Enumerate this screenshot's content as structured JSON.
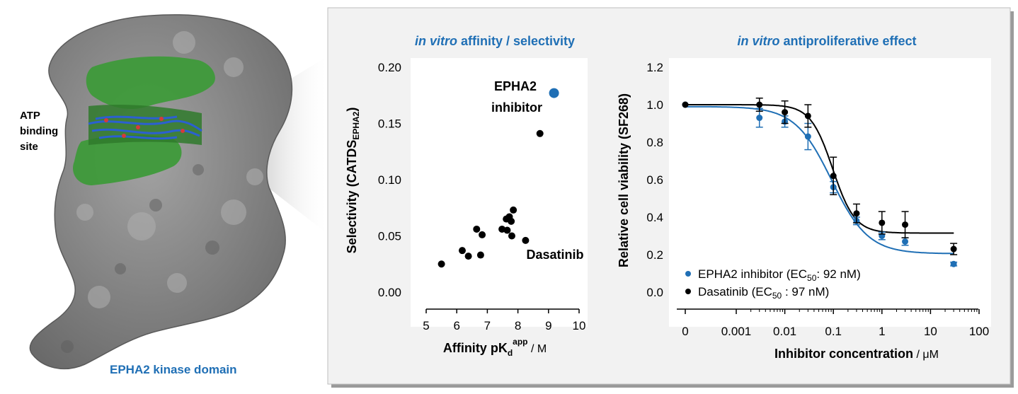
{
  "colors": {
    "panel_bg": "#f2f2f2",
    "accent_blue": "#1f6fb5",
    "black": "#000000",
    "protein_gray": "#8c8c8c",
    "binding_green": "#3e9a3a"
  },
  "protein": {
    "label": "EPHA2 kinase domain",
    "atp_label": [
      "ATP",
      "binding",
      "site"
    ]
  },
  "chart_data": [
    {
      "type": "scatter",
      "title_italic": "in vitro",
      "title_rest": "affinity  / selectivity",
      "xlabel_main": "Affinity pK",
      "xlabel_sub": "d",
      "xlabel_sup": "app",
      "xlabel_unit": " / M",
      "ylabel_main": "Selectivity (CATDS",
      "ylabel_sub": "EPHA2",
      "ylabel_end": ")",
      "xlim": [
        5,
        10
      ],
      "ylim": [
        0,
        0.2
      ],
      "xticks": [
        "5",
        "6",
        "7",
        "8",
        "9",
        "10"
      ],
      "yticks": [
        "0.00",
        "0.05",
        "0.10",
        "0.15",
        "0.20"
      ],
      "highlight": {
        "x": 9.18,
        "y": 0.177,
        "label_line1": "EPHA2",
        "label_line2": "inhibitor"
      },
      "dasatinib_label": "Dasatinib",
      "points": [
        {
          "x": 5.5,
          "y": 0.025
        },
        {
          "x": 6.18,
          "y": 0.037
        },
        {
          "x": 6.38,
          "y": 0.032
        },
        {
          "x": 6.65,
          "y": 0.056
        },
        {
          "x": 6.78,
          "y": 0.033
        },
        {
          "x": 6.83,
          "y": 0.051
        },
        {
          "x": 7.48,
          "y": 0.056
        },
        {
          "x": 7.62,
          "y": 0.065
        },
        {
          "x": 7.65,
          "y": 0.055
        },
        {
          "x": 7.72,
          "y": 0.067
        },
        {
          "x": 7.78,
          "y": 0.063
        },
        {
          "x": 7.8,
          "y": 0.05
        },
        {
          "x": 7.85,
          "y": 0.073
        },
        {
          "x": 8.25,
          "y": 0.046
        },
        {
          "x": 8.72,
          "y": 0.141
        }
      ]
    },
    {
      "type": "line",
      "title_italic": "in vitro",
      "title_rest": "antiproliferative  effect",
      "xlabel": "Inhibitor concentration",
      "xlabel_unit": " / μM",
      "ylabel": "Relative cell viability (SF268)",
      "ylim": [
        0,
        1.2
      ],
      "xticks": [
        "0",
        "0.001",
        "0.01",
        "0.1",
        "1",
        "10",
        "100"
      ],
      "yticks": [
        "0.0",
        "0.2",
        "0.4",
        "0.6",
        "0.8",
        "1.0",
        "1.2"
      ],
      "x_scale": "log",
      "series": [
        {
          "name_main": "EPHA2 inhibitor (EC",
          "name_sub": "50",
          "name_end": ": 92 nM)",
          "color": "#1f6fb5",
          "points": [
            {
              "x": 0,
              "y": 1.0,
              "err": 0.0
            },
            {
              "x": 0.003,
              "y": 0.93,
              "err": 0.05
            },
            {
              "x": 0.01,
              "y": 0.91,
              "err": 0.03
            },
            {
              "x": 0.03,
              "y": 0.83,
              "err": 0.07
            },
            {
              "x": 0.1,
              "y": 0.56,
              "err": 0.03
            },
            {
              "x": 0.3,
              "y": 0.38,
              "err": 0.02
            },
            {
              "x": 1,
              "y": 0.3,
              "err": 0.02
            },
            {
              "x": 3,
              "y": 0.27,
              "err": 0.02
            },
            {
              "x": 30,
              "y": 0.15,
              "err": 0.01
            }
          ],
          "fit": {
            "top": 0.99,
            "bottom": 0.205,
            "ec50": 0.092,
            "hill": 1.15
          }
        },
        {
          "name_main": "Dasatinib (EC",
          "name_sub": "50",
          "name_end": " : 97 nM)",
          "color": "#000000",
          "points": [
            {
              "x": 0,
              "y": 1.0,
              "err": 0.0
            },
            {
              "x": 0.003,
              "y": 1.0,
              "err": 0.035
            },
            {
              "x": 0.01,
              "y": 0.96,
              "err": 0.06
            },
            {
              "x": 0.03,
              "y": 0.94,
              "err": 0.06
            },
            {
              "x": 0.1,
              "y": 0.62,
              "err": 0.1
            },
            {
              "x": 0.3,
              "y": 0.42,
              "err": 0.05
            },
            {
              "x": 1,
              "y": 0.37,
              "err": 0.06
            },
            {
              "x": 3,
              "y": 0.36,
              "err": 0.07
            },
            {
              "x": 30,
              "y": 0.23,
              "err": 0.03
            }
          ],
          "fit": {
            "top": 1.0,
            "bottom": 0.315,
            "ec50": 0.097,
            "hill": 1.9
          }
        }
      ]
    }
  ]
}
